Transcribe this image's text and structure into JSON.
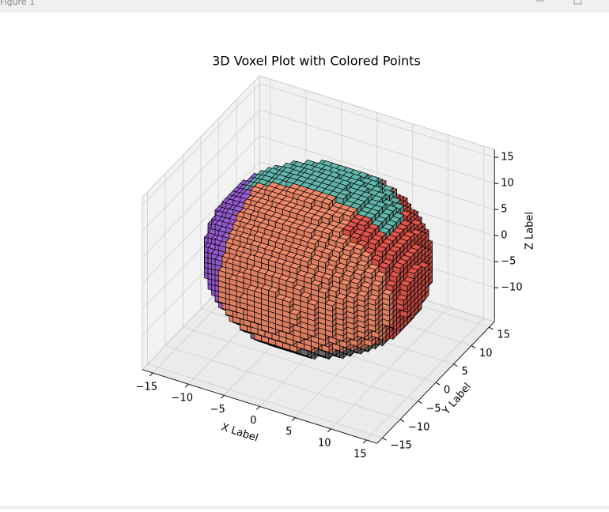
{
  "window_title": "Figure 1",
  "chart_data": {
    "type": "voxel3d",
    "title": "3D Voxel Plot with Colored Points",
    "xlabel": "X Label",
    "ylabel": "Y Label",
    "zlabel": "Z Label",
    "xlim": [
      -16.5,
      16.5
    ],
    "ylim": [
      -16.5,
      16.5
    ],
    "zlim": [
      -16.5,
      16.5
    ],
    "xticks": [
      {
        "value": -15,
        "label": "−15"
      },
      {
        "value": -10,
        "label": "−10"
      },
      {
        "value": -5,
        "label": "−5"
      },
      0,
      5,
      10,
      15
    ],
    "yticks": [
      {
        "value": -15,
        "label": "−15"
      },
      {
        "value": -10,
        "label": "−10"
      },
      {
        "value": -5,
        "label": "−5"
      },
      0,
      5,
      10,
      15
    ],
    "zticks": [
      {
        "value": -10,
        "label": "−10"
      },
      {
        "value": -5,
        "label": "−5"
      },
      0,
      5,
      10,
      15
    ],
    "grid": true,
    "voxel_colors": [
      "#9a5ed6",
      "#707070",
      "#62b5ab",
      "#e2564c",
      "#f0896a"
    ]
  }
}
